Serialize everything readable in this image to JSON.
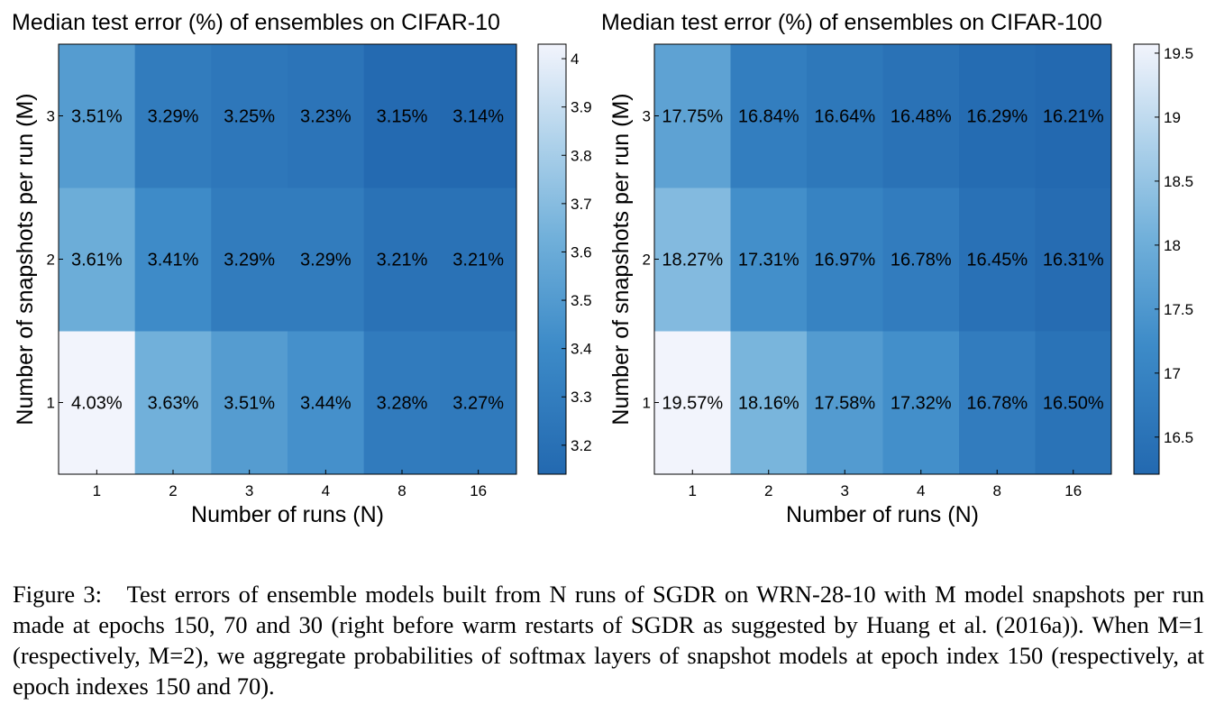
{
  "chart_data": [
    {
      "type": "heatmap",
      "title": "Median test error (%) of ensembles on CIFAR-10",
      "xlabel": "Number of runs (N)",
      "ylabel": "Number of snapshots per run (M)",
      "x_categories": [
        "1",
        "2",
        "3",
        "4",
        "8",
        "16"
      ],
      "y_categories": [
        "1",
        "2",
        "3"
      ],
      "values": [
        [
          4.03,
          3.63,
          3.51,
          3.44,
          3.28,
          3.27
        ],
        [
          3.61,
          3.41,
          3.29,
          3.29,
          3.21,
          3.21
        ],
        [
          3.51,
          3.29,
          3.25,
          3.23,
          3.15,
          3.14
        ]
      ],
      "cell_labels": [
        [
          "4.03%",
          "3.63%",
          "3.51%",
          "3.44%",
          "3.28%",
          "3.27%"
        ],
        [
          "3.61%",
          "3.41%",
          "3.29%",
          "3.29%",
          "3.21%",
          "3.21%"
        ],
        [
          "3.51%",
          "3.29%",
          "3.25%",
          "3.23%",
          "3.15%",
          "3.14%"
        ]
      ],
      "colorbar_range": [
        3.14,
        4.03
      ],
      "colorbar_ticks": [
        "3.2",
        "3.3",
        "3.4",
        "3.5",
        "3.6",
        "3.7",
        "3.8",
        "3.9",
        "4"
      ],
      "colorbar_tick_values": [
        3.2,
        3.3,
        3.4,
        3.5,
        3.6,
        3.7,
        3.8,
        3.9,
        4.0
      ],
      "colormap": "blues"
    },
    {
      "type": "heatmap",
      "title": "Median test error (%) of ensembles on CIFAR-100",
      "xlabel": "Number of runs (N)",
      "ylabel": "Number of snapshots per run (M)",
      "x_categories": [
        "1",
        "2",
        "3",
        "4",
        "8",
        "16"
      ],
      "y_categories": [
        "1",
        "2",
        "3"
      ],
      "values": [
        [
          19.57,
          18.16,
          17.58,
          17.32,
          16.78,
          16.5
        ],
        [
          18.27,
          17.31,
          16.97,
          16.78,
          16.45,
          16.31
        ],
        [
          17.75,
          16.84,
          16.64,
          16.48,
          16.29,
          16.21
        ]
      ],
      "cell_labels": [
        [
          "19.57%",
          "18.16%",
          "17.58%",
          "17.32%",
          "16.78%",
          "16.50%"
        ],
        [
          "18.27%",
          "17.31%",
          "16.97%",
          "16.78%",
          "16.45%",
          "16.31%"
        ],
        [
          "17.75%",
          "16.84%",
          "16.64%",
          "16.48%",
          "16.29%",
          "16.21%"
        ]
      ],
      "colorbar_range": [
        16.21,
        19.57
      ],
      "colorbar_ticks": [
        "16.5",
        "17",
        "17.5",
        "18",
        "18.5",
        "19",
        "19.5"
      ],
      "colorbar_tick_values": [
        16.5,
        17.0,
        17.5,
        18.0,
        18.5,
        19.0,
        19.5
      ],
      "colormap": "blues"
    }
  ],
  "colors": {
    "low_end": "#2369b0",
    "mid": "#8fbfe0",
    "high_end": "#f2f4fc"
  },
  "caption": {
    "label": "Figure 3:",
    "text": "Test errors of ensemble models built from N runs of SGDR on WRN-28-10 with M model snapshots per run made at epochs 150, 70 and 30 (right before warm restarts of SGDR as suggested by Huang et al. (2016a)). When M=1 (respectively, M=2), we aggregate probabilities of softmax layers of snapshot models at epoch index 150 (respectively, at epoch indexes 150 and 70)."
  }
}
